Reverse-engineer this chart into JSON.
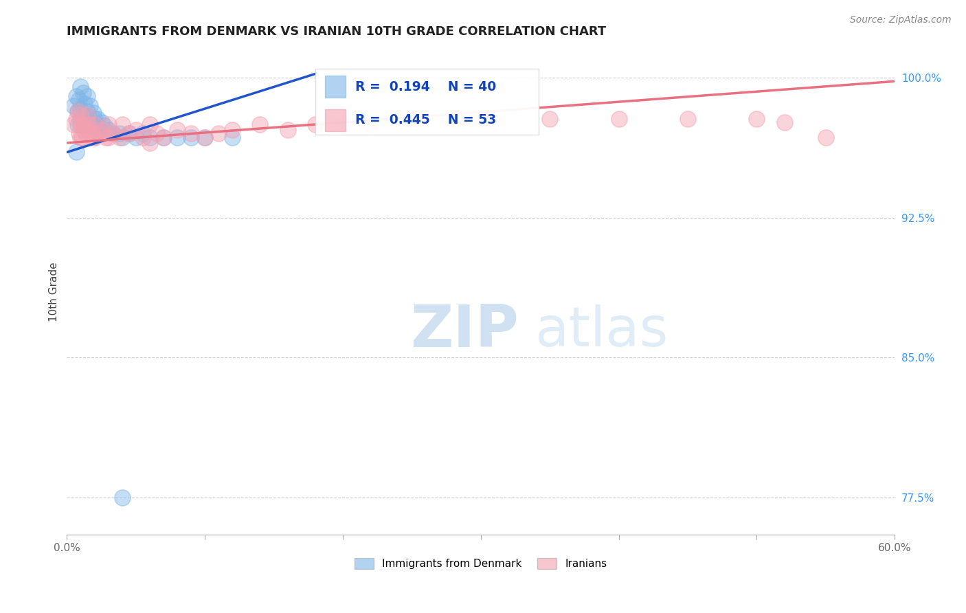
{
  "title": "IMMIGRANTS FROM DENMARK VS IRANIAN 10TH GRADE CORRELATION CHART",
  "source": "Source: ZipAtlas.com",
  "ylabel": "10th Grade",
  "xlim": [
    0.0,
    0.6
  ],
  "ylim": [
    0.755,
    1.015
  ],
  "xticks": [
    0.0,
    0.1,
    0.2,
    0.3,
    0.4,
    0.5,
    0.6
  ],
  "xticklabels": [
    "0.0%",
    "",
    "",
    "",
    "",
    "",
    "60.0%"
  ],
  "yticks": [
    0.775,
    0.85,
    0.925,
    1.0
  ],
  "yticklabels": [
    "77.5%",
    "85.0%",
    "92.5%",
    "100.0%"
  ],
  "blue_R": 0.194,
  "blue_N": 40,
  "pink_R": 0.445,
  "pink_N": 53,
  "blue_color": "#7EB6E8",
  "pink_color": "#F4A0B0",
  "blue_line_color": "#2255CC",
  "pink_line_color": "#E87080",
  "legend_label_blue": "Immigrants from Denmark",
  "legend_label_pink": "Iranians",
  "watermark_zip": "ZIP",
  "watermark_atlas": "atlas",
  "blue_points_x": [
    0.005,
    0.007,
    0.008,
    0.008,
    0.009,
    0.01,
    0.01,
    0.01,
    0.011,
    0.012,
    0.013,
    0.013,
    0.014,
    0.015,
    0.015,
    0.016,
    0.017,
    0.018,
    0.019,
    0.02,
    0.021,
    0.022,
    0.023,
    0.025,
    0.027,
    0.03,
    0.033,
    0.038,
    0.04,
    0.045,
    0.05,
    0.055,
    0.06,
    0.07,
    0.08,
    0.09,
    0.1,
    0.12,
    0.007,
    0.04
  ],
  "blue_points_y": [
    0.985,
    0.99,
    0.982,
    0.975,
    0.988,
    0.995,
    0.983,
    0.978,
    0.98,
    0.992,
    0.975,
    0.986,
    0.978,
    0.99,
    0.982,
    0.979,
    0.985,
    0.976,
    0.981,
    0.978,
    0.975,
    0.978,
    0.972,
    0.976,
    0.974,
    0.972,
    0.97,
    0.97,
    0.968,
    0.97,
    0.968,
    0.97,
    0.968,
    0.968,
    0.968,
    0.968,
    0.968,
    0.968,
    0.96,
    0.775
  ],
  "pink_points_x": [
    0.005,
    0.007,
    0.008,
    0.009,
    0.01,
    0.01,
    0.011,
    0.012,
    0.013,
    0.014,
    0.015,
    0.016,
    0.017,
    0.018,
    0.019,
    0.02,
    0.022,
    0.025,
    0.028,
    0.03,
    0.033,
    0.038,
    0.04,
    0.045,
    0.05,
    0.055,
    0.06,
    0.065,
    0.07,
    0.08,
    0.09,
    0.1,
    0.11,
    0.12,
    0.14,
    0.16,
    0.18,
    0.2,
    0.22,
    0.25,
    0.28,
    0.3,
    0.35,
    0.4,
    0.45,
    0.5,
    0.52,
    0.55,
    0.01,
    0.015,
    0.02,
    0.03,
    0.06
  ],
  "pink_points_y": [
    0.975,
    0.978,
    0.982,
    0.97,
    0.975,
    0.98,
    0.968,
    0.972,
    0.975,
    0.97,
    0.98,
    0.975,
    0.97,
    0.972,
    0.968,
    0.975,
    0.97,
    0.972,
    0.968,
    0.975,
    0.97,
    0.968,
    0.975,
    0.97,
    0.972,
    0.968,
    0.975,
    0.97,
    0.968,
    0.972,
    0.97,
    0.968,
    0.97,
    0.972,
    0.975,
    0.972,
    0.975,
    0.975,
    0.975,
    0.978,
    0.978,
    0.978,
    0.978,
    0.978,
    0.978,
    0.978,
    0.976,
    0.968,
    0.968,
    0.972,
    0.968,
    0.968,
    0.965
  ],
  "blue_line_x": [
    0.0,
    0.18
  ],
  "blue_line_y": [
    0.96,
    1.002
  ],
  "pink_line_x": [
    0.0,
    0.6
  ],
  "pink_line_y": [
    0.965,
    0.998
  ]
}
